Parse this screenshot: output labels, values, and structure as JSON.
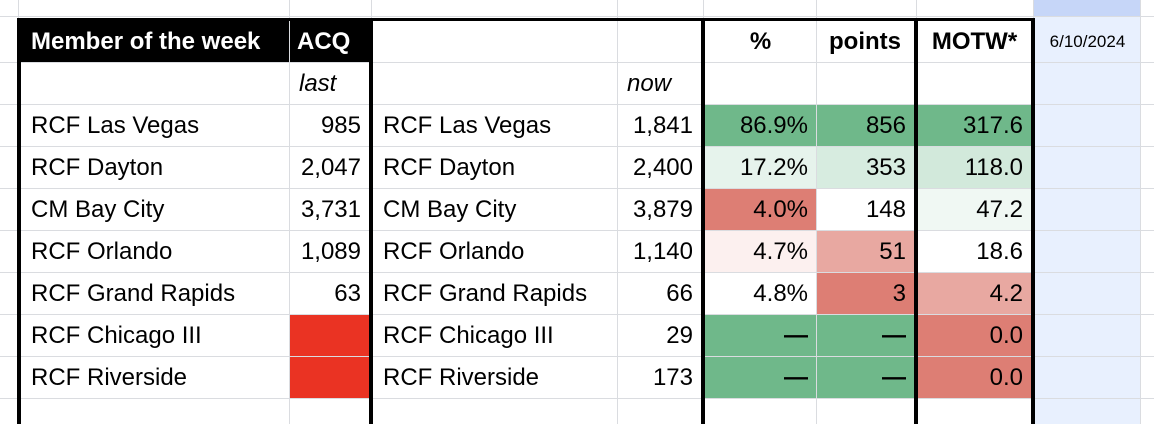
{
  "sheet": {
    "title_header": "Member of the week",
    "header_acq": "ACQ",
    "header_pct": "%",
    "header_points": "points",
    "header_motw": "MOTW*",
    "header_date": "6/10/2024",
    "sub_last": "last",
    "sub_now": "now",
    "rows": [
      {
        "name_last": "RCF Las Vegas",
        "last": "985",
        "name_now": "RCF Las Vegas",
        "now": "1,841",
        "pct": "86.9%",
        "points": "856",
        "motw": "317.6"
      },
      {
        "name_last": "RCF Dayton",
        "last": "2,047",
        "name_now": "RCF Dayton",
        "now": "2,400",
        "pct": "17.2%",
        "points": "353",
        "motw": "118.0"
      },
      {
        "name_last": "CM Bay City",
        "last": "3,731",
        "name_now": "CM Bay City",
        "now": "3,879",
        "pct": "4.0%",
        "points": "148",
        "motw": "47.2"
      },
      {
        "name_last": "RCF Orlando",
        "last": "1,089",
        "name_now": "RCF Orlando",
        "now": "1,140",
        "pct": "4.7%",
        "points": "51",
        "motw": "18.6"
      },
      {
        "name_last": "RCF Grand Rapids",
        "last": "63",
        "name_now": "RCF Grand Rapids",
        "now": "66",
        "pct": "4.8%",
        "points": "3",
        "motw": "4.2"
      },
      {
        "name_last": "RCF Chicago III",
        "last": "",
        "name_now": "RCF Chicago III",
        "now": "29",
        "pct": "—",
        "points": "—",
        "motw": "0.0"
      },
      {
        "name_last": "RCF Riverside",
        "last": "",
        "name_now": "RCF Riverside",
        "now": "173",
        "pct": "—",
        "points": "—",
        "motw": "0.0"
      }
    ]
  },
  "colors": {
    "header_black": "#000000",
    "gridline": "#dadce0",
    "missing_red": "#ea3323",
    "scale_green_strong": "#6fb88a",
    "scale_green_light": "#d7ece0",
    "scale_red_strong": "#dd7e74",
    "scale_red_light": "#e8a8a1",
    "selected_column": "#e8f0fe"
  }
}
